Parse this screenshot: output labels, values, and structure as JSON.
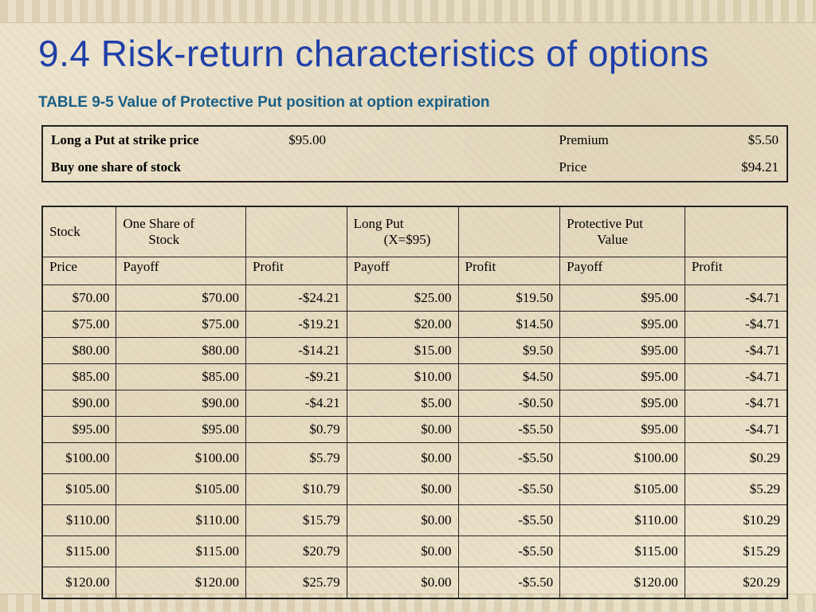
{
  "slide": {
    "title": "9.4 Risk-return characteristics of options",
    "subtitle": "TABLE 9-5 Value of Protective Put position at option expiration"
  },
  "info": {
    "row1": {
      "label": "Long a Put at strike price",
      "value": "$95.00",
      "label2": "Premium",
      "value2": "$5.50"
    },
    "row2": {
      "label": "Buy one share of stock",
      "label2": "Price",
      "value2": "$94.21"
    }
  },
  "table": {
    "header1": {
      "stock": "Stock",
      "share_line1": "One Share of",
      "share_line2": "Stock",
      "put_line1": "Long Put",
      "put_line2": "(X=$95)",
      "pp_line1": "Protective Put",
      "pp_line2": "Value"
    },
    "header2": [
      "Price",
      "Payoff",
      "Profit",
      "Payoff",
      "Profit",
      "Payoff",
      "Profit"
    ],
    "rows": [
      [
        "$70.00",
        "$70.00",
        "-$24.21",
        "$25.00",
        "$19.50",
        "$95.00",
        "-$4.71"
      ],
      [
        "$75.00",
        "$75.00",
        "-$19.21",
        "$20.00",
        "$14.50",
        "$95.00",
        "-$4.71"
      ],
      [
        "$80.00",
        "$80.00",
        "-$14.21",
        "$15.00",
        "$9.50",
        "$95.00",
        "-$4.71"
      ],
      [
        "$85.00",
        "$85.00",
        "-$9.21",
        "$10.00",
        "$4.50",
        "$95.00",
        "-$4.71"
      ],
      [
        "$90.00",
        "$90.00",
        "-$4.21",
        "$5.00",
        "-$0.50",
        "$95.00",
        "-$4.71"
      ],
      [
        "$95.00",
        "$95.00",
        "$0.79",
        "$0.00",
        "-$5.50",
        "$95.00",
        "-$4.71"
      ],
      [
        "$100.00",
        "$100.00",
        "$5.79",
        "$0.00",
        "-$5.50",
        "$100.00",
        "$0.29"
      ],
      [
        "$105.00",
        "$105.00",
        "$10.79",
        "$0.00",
        "-$5.50",
        "$105.00",
        "$5.29"
      ],
      [
        "$110.00",
        "$110.00",
        "$15.79",
        "$0.00",
        "-$5.50",
        "$110.00",
        "$10.29"
      ],
      [
        "$115.00",
        "$115.00",
        "$20.79",
        "$0.00",
        "-$5.50",
        "$115.00",
        "$15.29"
      ],
      [
        "$120.00",
        "$120.00",
        "$25.79",
        "$0.00",
        "-$5.50",
        "$120.00",
        "$20.29"
      ]
    ]
  }
}
